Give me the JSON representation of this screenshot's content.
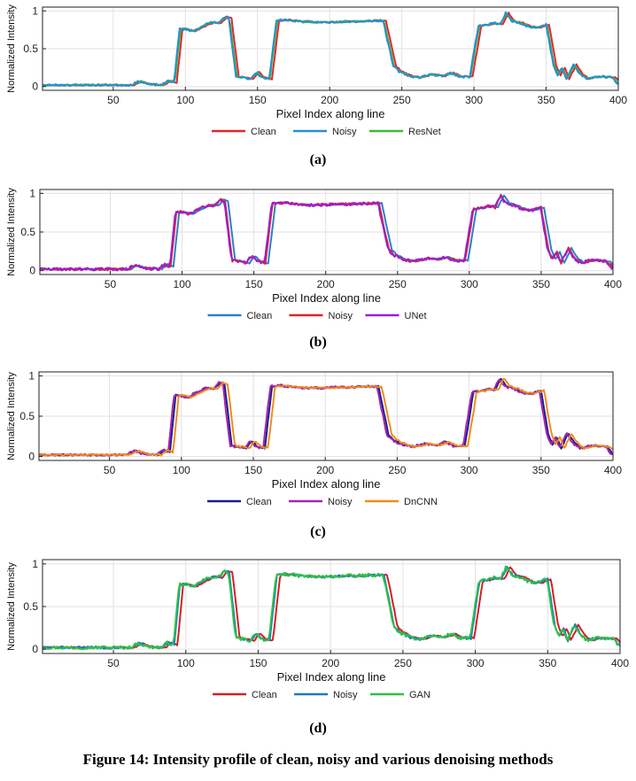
{
  "figure": {
    "caption": "Figure 14: Intensity profile of clean, noisy and various denoising methods"
  },
  "chart_data": [
    {
      "type": "line",
      "panel_label": "(a)",
      "xlabel": "Pixel Index along line",
      "ylabel": "Normalized Intensity",
      "xlim": [
        1,
        400
      ],
      "ylim": [
        -0.05,
        1.05
      ],
      "xticks": [
        50,
        100,
        150,
        200,
        250,
        300,
        350,
        400
      ],
      "yticks": [
        0,
        0.5,
        1
      ],
      "ytick_labels": [
        "0",
        "0.5",
        "1"
      ],
      "grid": true,
      "legend_position": "bottom-center",
      "series": [
        {
          "name": "Clean",
          "color": "#e3262b",
          "shift": 2,
          "seed": 11,
          "noise": 0.008,
          "order": 1
        },
        {
          "name": "Noisy",
          "color": "#2a8fd0",
          "shift": 0,
          "seed": 23,
          "noise": 0.014,
          "order": 3
        },
        {
          "name": "ResNet",
          "color": "#3cb83a",
          "shift": 0.6,
          "seed": 37,
          "noise": 0.01,
          "order": 2
        }
      ]
    },
    {
      "type": "line",
      "panel_label": "(b)",
      "xlabel": "Pixel Index along line",
      "ylabel": "Normalized Intensity",
      "xlim": [
        1,
        400
      ],
      "ylim": [
        -0.05,
        1.05
      ],
      "xticks": [
        50,
        100,
        150,
        200,
        250,
        300,
        350,
        400
      ],
      "yticks": [
        0,
        0.5,
        1
      ],
      "ytick_labels": [
        "0",
        "0.5",
        "1"
      ],
      "grid": true,
      "legend_position": "bottom-center",
      "series": [
        {
          "name": "Clean",
          "color": "#2a80c8",
          "shift": 2,
          "seed": 5,
          "noise": 0.008,
          "order": 1
        },
        {
          "name": "Noisy",
          "color": "#e02424",
          "shift": 0,
          "seed": 17,
          "noise": 0.016,
          "order": 2
        },
        {
          "name": "UNet",
          "color": "#9b1fd6",
          "shift": -0.6,
          "seed": 29,
          "noise": 0.018,
          "order": 3
        }
      ]
    },
    {
      "type": "line",
      "panel_label": "(c)",
      "xlabel": "Pixel Index along line",
      "ylabel": "Normalized Intensity",
      "xlim": [
        1,
        400
      ],
      "ylim": [
        -0.05,
        1.05
      ],
      "xticks": [
        50,
        100,
        150,
        200,
        250,
        300,
        350,
        400
      ],
      "yticks": [
        0,
        0.5,
        1
      ],
      "ytick_labels": [
        "0",
        "0.5",
        "1"
      ],
      "grid": true,
      "legend_position": "bottom-center",
      "series": [
        {
          "name": "Clean",
          "color": "#1c1c8c",
          "shift": 0,
          "seed": 41,
          "noise": 0.008,
          "order": 1
        },
        {
          "name": "Noisy",
          "color": "#a326b0",
          "shift": -1.2,
          "seed": 53,
          "noise": 0.014,
          "order": 2
        },
        {
          "name": "DnCNN",
          "color": "#f08c1c",
          "shift": 2.2,
          "seed": 61,
          "noise": 0.01,
          "order": 3
        }
      ]
    },
    {
      "type": "line",
      "panel_label": "(d)",
      "xlabel": "Pixel Index along line",
      "ylabel": "Normalized Intensity",
      "xlim": [
        1,
        400
      ],
      "ylim": [
        -0.05,
        1.05
      ],
      "xticks": [
        50,
        100,
        150,
        200,
        250,
        300,
        350,
        400
      ],
      "yticks": [
        0,
        0.5,
        1
      ],
      "ytick_labels": [
        "0",
        "0.5",
        "1"
      ],
      "grid": true,
      "legend_position": "bottom-center",
      "series": [
        {
          "name": "Clean",
          "color": "#d42020",
          "shift": 2.2,
          "seed": 71,
          "noise": 0.008,
          "order": 1
        },
        {
          "name": "Noisy",
          "color": "#1f78c8",
          "shift": 0,
          "seed": 83,
          "noise": 0.014,
          "order": 2
        },
        {
          "name": "GAN",
          "color": "#2ec245",
          "shift": -0.6,
          "seed": 97,
          "noise": 0.02,
          "order": 3
        }
      ]
    }
  ],
  "profile_shape": {
    "comment": "approximate intensity levels of the line profile in data units (pixel index, intensity)",
    "knots": [
      [
        1,
        0.02
      ],
      [
        62,
        0.02
      ],
      [
        68,
        0.07
      ],
      [
        74,
        0.03
      ],
      [
        84,
        0.02
      ],
      [
        88,
        0.08
      ],
      [
        92,
        0.05
      ],
      [
        96,
        0.76
      ],
      [
        100,
        0.76
      ],
      [
        105,
        0.73
      ],
      [
        112,
        0.8
      ],
      [
        118,
        0.85
      ],
      [
        123,
        0.84
      ],
      [
        127,
        0.92
      ],
      [
        130,
        0.9
      ],
      [
        135,
        0.13
      ],
      [
        140,
        0.12
      ],
      [
        145,
        0.1
      ],
      [
        149,
        0.19
      ],
      [
        153,
        0.12
      ],
      [
        158,
        0.1
      ],
      [
        163,
        0.87
      ],
      [
        170,
        0.88
      ],
      [
        180,
        0.86
      ],
      [
        190,
        0.85
      ],
      [
        200,
        0.85
      ],
      [
        210,
        0.86
      ],
      [
        220,
        0.86
      ],
      [
        230,
        0.87
      ],
      [
        237,
        0.87
      ],
      [
        244,
        0.27
      ],
      [
        248,
        0.2
      ],
      [
        255,
        0.14
      ],
      [
        262,
        0.12
      ],
      [
        270,
        0.16
      ],
      [
        278,
        0.14
      ],
      [
        284,
        0.18
      ],
      [
        290,
        0.13
      ],
      [
        297,
        0.13
      ],
      [
        303,
        0.8
      ],
      [
        308,
        0.81
      ],
      [
        314,
        0.84
      ],
      [
        318,
        0.82
      ],
      [
        322,
        0.97
      ],
      [
        326,
        0.87
      ],
      [
        332,
        0.84
      ],
      [
        338,
        0.79
      ],
      [
        344,
        0.78
      ],
      [
        350,
        0.82
      ],
      [
        355,
        0.28
      ],
      [
        358,
        0.15
      ],
      [
        361,
        0.24
      ],
      [
        364,
        0.1
      ],
      [
        369,
        0.29
      ],
      [
        373,
        0.17
      ],
      [
        378,
        0.1
      ],
      [
        384,
        0.13
      ],
      [
        390,
        0.13
      ],
      [
        396,
        0.12
      ],
      [
        400,
        0.03
      ]
    ]
  }
}
